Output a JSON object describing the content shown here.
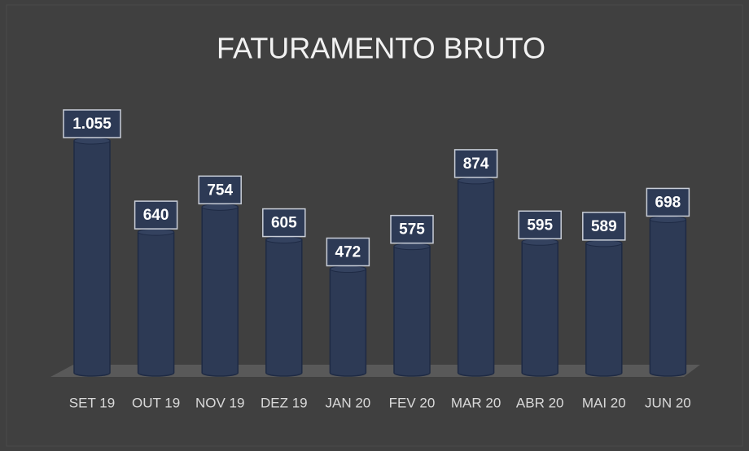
{
  "chart_data": {
    "type": "bar",
    "title": "FATURAMENTO BRUTO",
    "categories": [
      "SET 19",
      "OUT 19",
      "NOV 19",
      "DEZ 19",
      "JAN 20",
      "FEV 20",
      "MAR 20",
      "ABR 20",
      "MAI 20",
      "JUN 20"
    ],
    "values": [
      1055,
      640,
      754,
      605,
      472,
      575,
      874,
      595,
      589,
      698
    ],
    "value_labels": [
      "1.055",
      "640",
      "754",
      "605",
      "472",
      "575",
      "874",
      "595",
      "589",
      "698"
    ],
    "color": "#2d3a55"
  }
}
